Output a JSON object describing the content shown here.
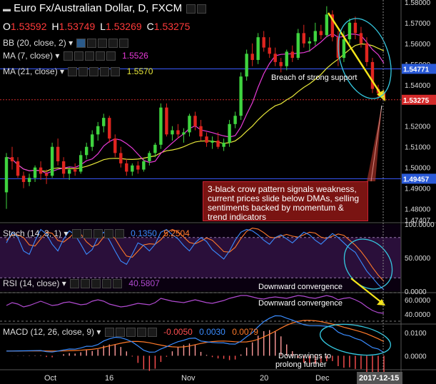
{
  "header": {
    "title": "Euro Fx/Australian Dollar, D, FXCM",
    "ohlc": [
      {
        "k": "O",
        "v": "1.53592"
      },
      {
        "k": "H",
        "v": "1.53749"
      },
      {
        "k": "L",
        "v": "1.53269"
      },
      {
        "k": "C",
        "v": "1.53275"
      }
    ]
  },
  "indicators": {
    "bb": {
      "label": "BB (20, close, 2)"
    },
    "ma7": {
      "label": "MA (7, close)",
      "value": "1.5526"
    },
    "ma21": {
      "label": "MA (21, close)",
      "value": "1.5570"
    },
    "stoch": {
      "label": "Stoch (14, 3, 1)",
      "k": "0.1350",
      "d": "5.2504"
    },
    "rsi": {
      "label": "RSI (14, close)",
      "value": "40.5807"
    },
    "macd": {
      "label": "MACD (12, 26, close, 9)",
      "hist": "-0.0050",
      "macd": "0.0030",
      "signal": "0.0079"
    }
  },
  "price_axis": {
    "ticks": [
      "1.58000",
      "1.57000",
      "1.56000",
      "1.55000",
      "1.54000",
      "1.53000",
      "1.52000",
      "1.51000",
      "1.50000",
      "1.49000",
      "1.48000",
      "1.47407"
    ],
    "labels": {
      "bb_upper": "1.54771",
      "last": "1.53275",
      "bb_lower": "1.49457"
    }
  },
  "stoch_axis": [
    "100.0000",
    "50.0000",
    "0.0000"
  ],
  "rsi_axis": [
    "60.0000",
    "40.0000"
  ],
  "macd_axis": [
    "0.0100",
    "0.0000"
  ],
  "time_axis": [
    "Oct",
    "16",
    "Nov",
    "20",
    "Dec",
    "2017-12-15"
  ],
  "annotations": {
    "breach": "Breach of strong support",
    "crow": "3-black crow pattern signals weakness, current prices slide below DMAs, selling sentiments backed by momentum & trend indicators",
    "stoch_conv": "Downward convergence",
    "rsi_conv": "Downward convergence",
    "macd_note": "Downswings to prolong further"
  },
  "colors": {
    "bull": "#3fd43f",
    "bear": "#e0251f",
    "ma7": "#e83ad8",
    "ma21": "#e8e83a",
    "bb": "#4a86ff",
    "stoch_k": "#3a8cff",
    "stoch_d": "#ff7a2a",
    "rsi": "#b04ad0",
    "macd": "#3a8cff",
    "signal": "#ff7a2a",
    "hist_neg": "#ff5050",
    "support": "#cc2a2a"
  },
  "chart_data": {
    "type": "candlestick",
    "title": "Euro Fx/Australian Dollar, D, FXCM",
    "x_range": [
      "2017-09-18",
      "2017-12-15"
    ],
    "ylim": [
      1.474,
      1.581
    ],
    "candles": [
      {
        "o": 1.488,
        "h": 1.507,
        "l": 1.48,
        "c": 1.505
      },
      {
        "o": 1.505,
        "h": 1.51,
        "l": 1.499,
        "c": 1.503
      },
      {
        "o": 1.503,
        "h": 1.505,
        "l": 1.495,
        "c": 1.496
      },
      {
        "o": 1.496,
        "h": 1.498,
        "l": 1.49,
        "c": 1.493
      },
      {
        "o": 1.493,
        "h": 1.497,
        "l": 1.491,
        "c": 1.495
      },
      {
        "o": 1.495,
        "h": 1.501,
        "l": 1.493,
        "c": 1.5
      },
      {
        "o": 1.5,
        "h": 1.503,
        "l": 1.494,
        "c": 1.497
      },
      {
        "o": 1.497,
        "h": 1.499,
        "l": 1.492,
        "c": 1.496
      },
      {
        "o": 1.496,
        "h": 1.512,
        "l": 1.495,
        "c": 1.51
      },
      {
        "o": 1.51,
        "h": 1.514,
        "l": 1.501,
        "c": 1.503
      },
      {
        "o": 1.503,
        "h": 1.505,
        "l": 1.495,
        "c": 1.497
      },
      {
        "o": 1.497,
        "h": 1.5,
        "l": 1.494,
        "c": 1.499
      },
      {
        "o": 1.499,
        "h": 1.502,
        "l": 1.496,
        "c": 1.498
      },
      {
        "o": 1.498,
        "h": 1.508,
        "l": 1.497,
        "c": 1.506
      },
      {
        "o": 1.506,
        "h": 1.512,
        "l": 1.504,
        "c": 1.51
      },
      {
        "o": 1.51,
        "h": 1.518,
        "l": 1.508,
        "c": 1.516
      },
      {
        "o": 1.516,
        "h": 1.522,
        "l": 1.513,
        "c": 1.52
      },
      {
        "o": 1.52,
        "h": 1.526,
        "l": 1.517,
        "c": 1.524
      },
      {
        "o": 1.524,
        "h": 1.525,
        "l": 1.512,
        "c": 1.514
      },
      {
        "o": 1.514,
        "h": 1.516,
        "l": 1.505,
        "c": 1.507
      },
      {
        "o": 1.507,
        "h": 1.51,
        "l": 1.5,
        "c": 1.502
      },
      {
        "o": 1.502,
        "h": 1.504,
        "l": 1.496,
        "c": 1.498
      },
      {
        "o": 1.498,
        "h": 1.502,
        "l": 1.496,
        "c": 1.501
      },
      {
        "o": 1.501,
        "h": 1.503,
        "l": 1.497,
        "c": 1.499
      },
      {
        "o": 1.499,
        "h": 1.504,
        "l": 1.498,
        "c": 1.503
      },
      {
        "o": 1.503,
        "h": 1.508,
        "l": 1.501,
        "c": 1.507
      },
      {
        "o": 1.507,
        "h": 1.512,
        "l": 1.505,
        "c": 1.511
      },
      {
        "o": 1.511,
        "h": 1.531,
        "l": 1.509,
        "c": 1.529
      },
      {
        "o": 1.529,
        "h": 1.531,
        "l": 1.515,
        "c": 1.516
      },
      {
        "o": 1.516,
        "h": 1.52,
        "l": 1.513,
        "c": 1.518
      },
      {
        "o": 1.518,
        "h": 1.521,
        "l": 1.514,
        "c": 1.516
      },
      {
        "o": 1.516,
        "h": 1.519,
        "l": 1.512,
        "c": 1.517
      },
      {
        "o": 1.517,
        "h": 1.526,
        "l": 1.515,
        "c": 1.525
      },
      {
        "o": 1.525,
        "h": 1.527,
        "l": 1.518,
        "c": 1.52
      },
      {
        "o": 1.52,
        "h": 1.523,
        "l": 1.513,
        "c": 1.515
      },
      {
        "o": 1.515,
        "h": 1.517,
        "l": 1.51,
        "c": 1.512
      },
      {
        "o": 1.512,
        "h": 1.515,
        "l": 1.509,
        "c": 1.513
      },
      {
        "o": 1.513,
        "h": 1.517,
        "l": 1.509,
        "c": 1.51
      },
      {
        "o": 1.51,
        "h": 1.514,
        "l": 1.508,
        "c": 1.512
      },
      {
        "o": 1.512,
        "h": 1.523,
        "l": 1.51,
        "c": 1.521
      },
      {
        "o": 1.521,
        "h": 1.527,
        "l": 1.519,
        "c": 1.525
      },
      {
        "o": 1.525,
        "h": 1.546,
        "l": 1.523,
        "c": 1.544
      },
      {
        "o": 1.544,
        "h": 1.557,
        "l": 1.542,
        "c": 1.555
      },
      {
        "o": 1.555,
        "h": 1.56,
        "l": 1.549,
        "c": 1.552
      },
      {
        "o": 1.552,
        "h": 1.565,
        "l": 1.55,
        "c": 1.563
      },
      {
        "o": 1.563,
        "h": 1.566,
        "l": 1.556,
        "c": 1.558
      },
      {
        "o": 1.558,
        "h": 1.563,
        "l": 1.553,
        "c": 1.555
      },
      {
        "o": 1.555,
        "h": 1.558,
        "l": 1.549,
        "c": 1.551
      },
      {
        "o": 1.551,
        "h": 1.553,
        "l": 1.546,
        "c": 1.549
      },
      {
        "o": 1.549,
        "h": 1.557,
        "l": 1.547,
        "c": 1.556
      },
      {
        "o": 1.556,
        "h": 1.559,
        "l": 1.551,
        "c": 1.553
      },
      {
        "o": 1.553,
        "h": 1.567,
        "l": 1.552,
        "c": 1.565
      },
      {
        "o": 1.565,
        "h": 1.569,
        "l": 1.558,
        "c": 1.56
      },
      {
        "o": 1.56,
        "h": 1.563,
        "l": 1.556,
        "c": 1.561
      },
      {
        "o": 1.561,
        "h": 1.57,
        "l": 1.559,
        "c": 1.566
      },
      {
        "o": 1.566,
        "h": 1.569,
        "l": 1.562,
        "c": 1.564
      },
      {
        "o": 1.564,
        "h": 1.578,
        "l": 1.563,
        "c": 1.574
      },
      {
        "o": 1.574,
        "h": 1.576,
        "l": 1.561,
        "c": 1.563
      },
      {
        "o": 1.563,
        "h": 1.566,
        "l": 1.549,
        "c": 1.553
      },
      {
        "o": 1.553,
        "h": 1.566,
        "l": 1.551,
        "c": 1.562
      },
      {
        "o": 1.562,
        "h": 1.572,
        "l": 1.56,
        "c": 1.57
      },
      {
        "o": 1.57,
        "h": 1.573,
        "l": 1.562,
        "c": 1.565
      },
      {
        "o": 1.565,
        "h": 1.568,
        "l": 1.558,
        "c": 1.56
      },
      {
        "o": 1.56,
        "h": 1.563,
        "l": 1.549,
        "c": 1.551
      },
      {
        "o": 1.551,
        "h": 1.553,
        "l": 1.536,
        "c": 1.538
      },
      {
        "o": 1.538,
        "h": 1.54,
        "l": 1.533,
        "c": 1.536
      },
      {
        "o": 1.536,
        "h": 1.537,
        "l": 1.533,
        "c": 1.533
      }
    ],
    "series": [
      {
        "name": "MA (7, close)",
        "last": 1.5526
      },
      {
        "name": "MA (21, close)",
        "last": 1.557
      }
    ],
    "stoch": {
      "ylim": [
        0,
        100
      ],
      "levels": [
        20,
        80
      ],
      "k_last": 0.135,
      "d_last": 5.2504
    },
    "rsi": {
      "ylim": [
        28,
        68
      ],
      "levels": [
        30,
        70
      ],
      "last": 40.5807
    },
    "macd": {
      "ylim": [
        -0.006,
        0.013
      ],
      "macd_last": 0.003,
      "signal_last": 0.0079,
      "hist_last": -0.005
    }
  }
}
